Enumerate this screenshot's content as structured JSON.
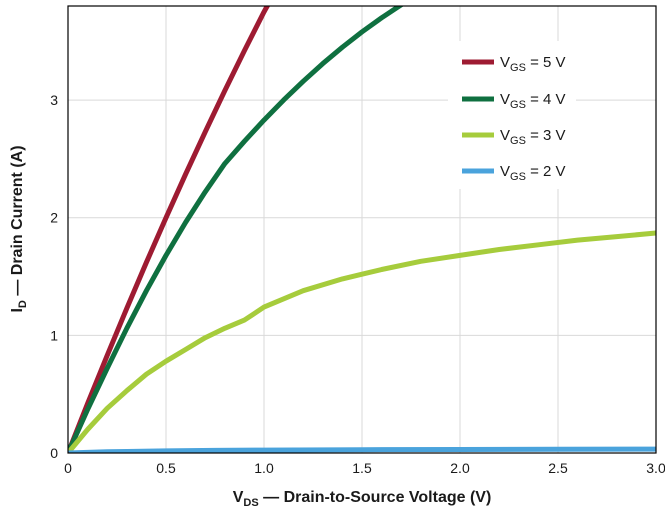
{
  "chart_data": {
    "type": "line",
    "xlabel": {
      "main": "V",
      "sub": "DS",
      "rest": " — Drain-to-Source Voltage (V)"
    },
    "ylabel": {
      "main": "I",
      "sub": "D",
      "rest": " — Drain Current (A)"
    },
    "xlim": [
      0,
      3.0
    ],
    "ylim": [
      0,
      3.8
    ],
    "x_ticks": [
      {
        "value": 0,
        "label": "0"
      },
      {
        "value": 0.5,
        "label": "0.5"
      },
      {
        "value": 1.0,
        "label": "1.0"
      },
      {
        "value": 1.5,
        "label": "1.5"
      },
      {
        "value": 2.0,
        "label": "2.0"
      },
      {
        "value": 2.5,
        "label": "2.5"
      },
      {
        "value": 3.0,
        "label": "3.0"
      }
    ],
    "y_ticks": [
      {
        "value": 0,
        "label": "0"
      },
      {
        "value": 1,
        "label": "1"
      },
      {
        "value": 2,
        "label": "2"
      },
      {
        "value": 3,
        "label": "3"
      }
    ],
    "grid": true,
    "legend_position": "top-right",
    "series": [
      {
        "label_main": "V",
        "label_sub": "GS",
        "label_rest": " = 5 V",
        "color": "#9e1b32",
        "x": [
          0,
          0.1,
          0.2,
          0.3,
          0.4,
          0.5,
          0.6,
          0.7,
          0.8,
          0.9,
          1.0,
          1.05
        ],
        "y": [
          0,
          0.42,
          0.83,
          1.23,
          1.62,
          2.0,
          2.37,
          2.73,
          3.08,
          3.42,
          3.75,
          3.9
        ]
      },
      {
        "label_main": "V",
        "label_sub": "GS",
        "label_rest": " = 4 V",
        "color": "#0f7040",
        "x": [
          0,
          0.1,
          0.2,
          0.3,
          0.4,
          0.5,
          0.6,
          0.7,
          0.8,
          0.9,
          1.0,
          1.1,
          1.2,
          1.3,
          1.4,
          1.5,
          1.6,
          1.7,
          1.75
        ],
        "y": [
          0,
          0.37,
          0.72,
          1.06,
          1.38,
          1.68,
          1.96,
          2.22,
          2.46,
          2.65,
          2.83,
          3.0,
          3.16,
          3.31,
          3.45,
          3.58,
          3.7,
          3.81,
          3.87
        ]
      },
      {
        "label_main": "V",
        "label_sub": "GS",
        "label_rest": " = 3 V",
        "color": "#a6cc3c",
        "x": [
          0,
          0.1,
          0.2,
          0.3,
          0.4,
          0.5,
          0.6,
          0.7,
          0.8,
          0.9,
          1.0,
          1.2,
          1.4,
          1.5,
          1.6,
          1.8,
          2.0,
          2.2,
          2.4,
          2.6,
          2.8,
          3.0
        ],
        "y": [
          0,
          0.2,
          0.38,
          0.53,
          0.67,
          0.78,
          0.88,
          0.98,
          1.06,
          1.13,
          1.24,
          1.38,
          1.48,
          1.52,
          1.56,
          1.63,
          1.68,
          1.73,
          1.77,
          1.81,
          1.84,
          1.87
        ]
      },
      {
        "label_main": "V",
        "label_sub": "GS",
        "label_rest": " = 2 V",
        "color": "#4aa3dc",
        "x": [
          0,
          0.1,
          0.2,
          0.3,
          0.5,
          0.75,
          1.0,
          1.5,
          2.0,
          2.5,
          3.0
        ],
        "y": [
          0,
          0.005,
          0.01,
          0.013,
          0.018,
          0.022,
          0.025,
          0.028,
          0.03,
          0.032,
          0.033
        ]
      }
    ]
  }
}
